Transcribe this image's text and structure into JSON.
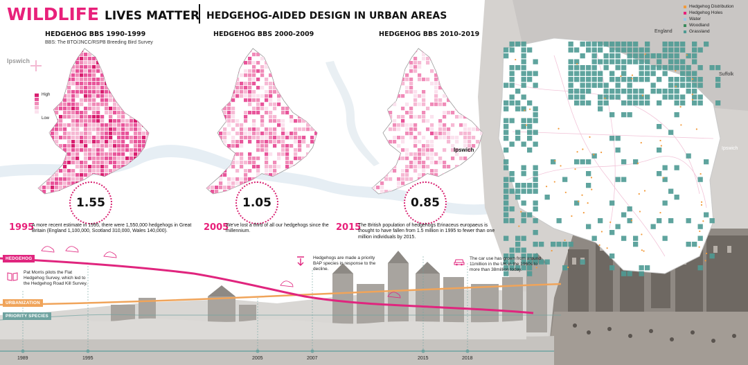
{
  "header": {
    "title_main": "WILDLIFE",
    "title_sub": "LIVES  MATTER",
    "title_right": "HEDGEHOG-AIDED DESIGN  IN URBAN AREAS"
  },
  "maps": [
    {
      "title": "HEDGEHOG BBS 1990-1999",
      "subtitle": "BBS: The BTO/JNCC/RSPB Breeding Bird Survey",
      "value": "1.55",
      "density": 0.75
    },
    {
      "title": "HEDGEHOG BBS 2000-2009",
      "subtitle": "",
      "value": "1.05",
      "density": 0.5
    },
    {
      "title": "HEDGEHOG BBS 2010-2019",
      "subtitle": "",
      "value": "0.85",
      "density": 0.35
    }
  ],
  "density_legend": {
    "high": "High",
    "low": "Low"
  },
  "places": {
    "ipswich_left": "Ipswich",
    "ipswich_map": "Ipswich",
    "england": "England",
    "suffolk": "Suffolk",
    "ipswich_right": "Ipswich"
  },
  "facts": [
    {
      "year": "1995",
      "text": "A more recent estimate in 1995, there were 1,550,000 hedgehogs in Great Britain (England 1,100,000, Scotland 310,000, Wales 140,000)."
    },
    {
      "year": "2005",
      "text": "We've lost a third of all our hedgehogs since the millennium."
    },
    {
      "year": "2015",
      "text": "The British population of hedgehogs Erinaceus europaeus is thought to have fallen from 1.5 million in 1995 to fewer than one million individuals by 2015."
    }
  ],
  "timeline": {
    "labels": {
      "hedgehog": "HEDGEHOG",
      "urbanization": "URBANIZATION",
      "priority": "PRIORITY SPECIES"
    },
    "events": [
      {
        "text": "Pat Morris pilots the Flat Hedgehog Survey, which led to the Hedgehog Road Kill Survey."
      },
      {
        "text": "Hedgehogs are made a priority BAP species in response to the decline."
      },
      {
        "text": "The car use has grown from around 11million in the UK in the 1960s to more than 38million today."
      }
    ],
    "years": [
      "1989",
      "1995",
      "2005",
      "2007",
      "2015",
      "2018"
    ],
    "colors": {
      "hedgehog": "#e0257e",
      "urbanization": "#f0a45a",
      "priority": "#6fa3a0"
    }
  },
  "map_legend": [
    {
      "label": "Hedgehog Distribution",
      "color": "#f29a3a"
    },
    {
      "label": "Hedgehog Holes",
      "color": "#e8207a"
    },
    {
      "label": "Water",
      "color": "#9cc8e8"
    },
    {
      "label": "Woodland",
      "color": "#3a8a5a"
    },
    {
      "label": "Grassland",
      "color": "#4e9a93"
    }
  ]
}
